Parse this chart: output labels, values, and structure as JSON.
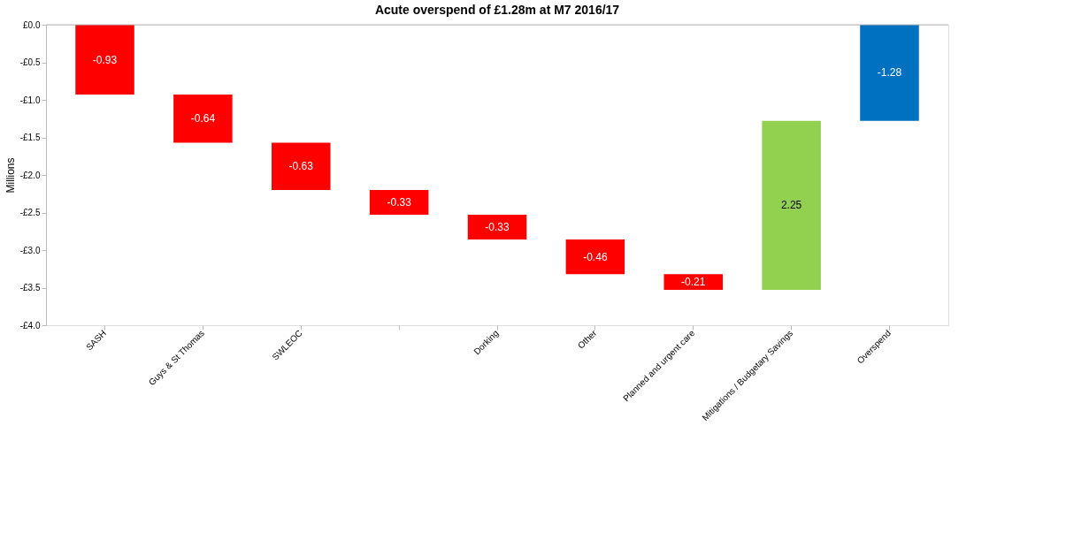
{
  "chart_data": {
    "type": "bar",
    "title": "Acute overspend of £1.28m at M7 2016/17",
    "ylabel": "Millions",
    "categories": [
      "SASH",
      "Guys & St Thomas",
      "SWLEOC",
      null,
      "Dorking",
      "Other",
      "Planned and urgent care",
      "Mitigations / Budgetary Savings",
      "Overspend"
    ],
    "values": [
      -0.93,
      -0.64,
      -0.63,
      -0.33,
      -0.33,
      -0.46,
      -0.21,
      2.25,
      -1.28
    ],
    "base": [
      0,
      -0.93,
      -1.57,
      -2.2,
      -2.53,
      -2.86,
      -3.32,
      -3.53,
      0
    ],
    "colors": [
      "#ff0000",
      "#ff0000",
      "#ff0000",
      "#ff0000",
      "#ff0000",
      "#ff0000",
      "#ff0000",
      "#92d050",
      "#0070c0"
    ],
    "ylim": [
      -4,
      0
    ],
    "yticks": [
      {
        "value": 0,
        "label": "£0.0"
      },
      {
        "value": -0.5,
        "label": "-£0.5"
      },
      {
        "value": -1,
        "label": "-£1.0"
      },
      {
        "value": -1.5,
        "label": "-£1.5"
      },
      {
        "value": -2,
        "label": "-£2.0"
      },
      {
        "value": -2.5,
        "label": "-£2.5"
      },
      {
        "value": -3,
        "label": "-£3.0"
      },
      {
        "value": -3.5,
        "label": "-£3.5"
      },
      {
        "value": -4,
        "label": "-£4.0"
      }
    ],
    "data_labels": true,
    "grid": false
  }
}
